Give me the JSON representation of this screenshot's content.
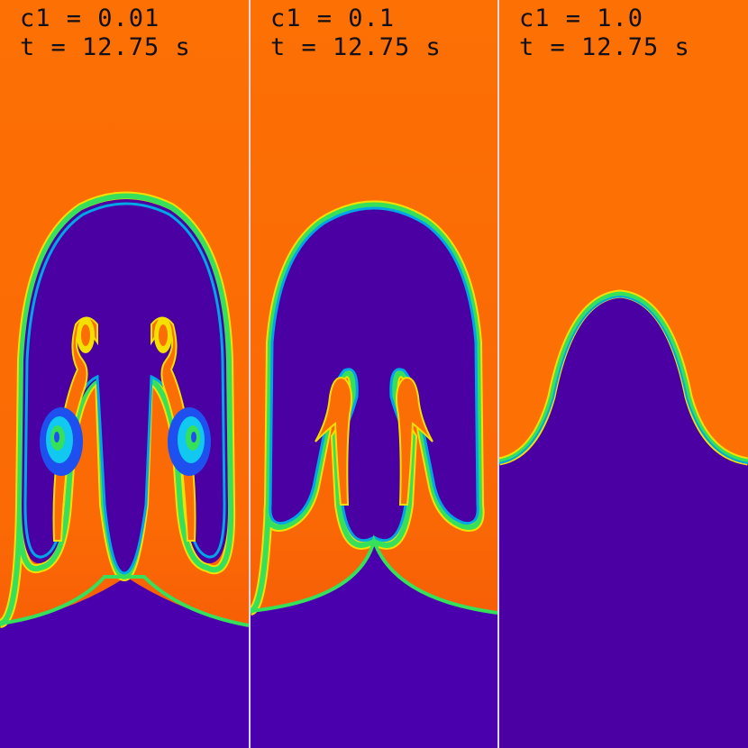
{
  "panels": [
    {
      "c_label": "c1 = 0.01",
      "t_label": "t = 12.75 s"
    },
    {
      "c_label": "c1 = 0.1",
      "t_label": "t = 12.75 s"
    },
    {
      "c_label": "c1 = 1.0",
      "t_label": "t = 12.75 s"
    }
  ],
  "colors": {
    "heavy_fluid": "#fc6d04",
    "heavy_fluid_dark": "#f45a08",
    "light_fluid": "#4a00a2",
    "light_fluid_lower": "#4b00ad",
    "interface_inner": "#00a6e6",
    "interface_mid": "#36e05a",
    "interface_outer": "#f4e000",
    "vortex_blue": "#1e50f0",
    "vortex_cyan": "#10c8f0"
  }
}
